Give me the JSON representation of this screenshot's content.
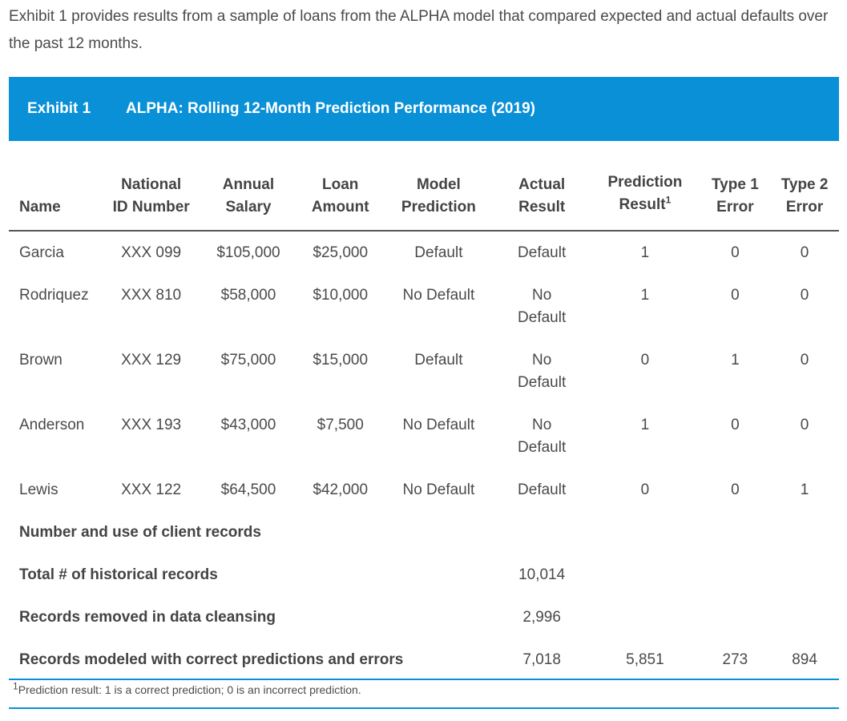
{
  "intro": "Exhibit 1 provides results from a sample of loans from the ALPHA model that compared expected and actual defaults over the past 12 months.",
  "banner": {
    "exhibit": "Exhibit 1",
    "title": "ALPHA: Rolling 12-Month Prediction Performance (2019)"
  },
  "headers": {
    "name": "Name",
    "id_l1": "National",
    "id_l2": "ID Number",
    "salary_l1": "Annual",
    "salary_l2": "Salary",
    "loan_l1": "Loan",
    "loan_l2": "Amount",
    "model_l1": "Model",
    "model_l2": "Prediction",
    "actual_l1": "Actual",
    "actual_l2": "Result",
    "pred_l1": "Prediction",
    "pred_l2": "Result",
    "pred_sup": "1",
    "t1_l1": "Type 1",
    "t1_l2": "Error",
    "t2_l1": "Type 2",
    "t2_l2": "Error"
  },
  "rows": [
    {
      "name": "Garcia",
      "id": "XXX 099",
      "salary": "$105,000",
      "loan": "$25,000",
      "model": "Default",
      "actual": "Default",
      "pred": "1",
      "t1": "0",
      "t2": "0"
    },
    {
      "name": "Rodriquez",
      "id": "XXX 810",
      "salary": "$58,000",
      "loan": "$10,000",
      "model": "No Default",
      "actual": "No Default",
      "pred": "1",
      "t1": "0",
      "t2": "0"
    },
    {
      "name": "Brown",
      "id": "XXX 129",
      "salary": "$75,000",
      "loan": "$15,000",
      "model": "Default",
      "actual": "No Default",
      "pred": "0",
      "t1": "1",
      "t2": "0"
    },
    {
      "name": "Anderson",
      "id": "XXX 193",
      "salary": "$43,000",
      "loan": "$7,500",
      "model": "No Default",
      "actual": "No Default",
      "pred": "1",
      "t1": "0",
      "t2": "0"
    },
    {
      "name": "Lewis",
      "id": "XXX 122",
      "salary": "$64,500",
      "loan": "$42,000",
      "model": "No Default",
      "actual": "Default",
      "pred": "0",
      "t1": "0",
      "t2": "1"
    }
  ],
  "summary": {
    "heading": "Number and use of client records",
    "total_label": "Total # of historical records",
    "total_value": "10,014",
    "removed_label": "Records removed in data cleansing",
    "removed_value": "2,996",
    "modeled_label": "Records modeled with correct predictions and errors",
    "modeled_value": "7,018",
    "modeled_pred": "5,851",
    "modeled_t1": "273",
    "modeled_t2": "894"
  },
  "footnote": {
    "sup": "1",
    "text": "Prediction result: 1 is a correct prediction; 0 is an incorrect prediction."
  }
}
